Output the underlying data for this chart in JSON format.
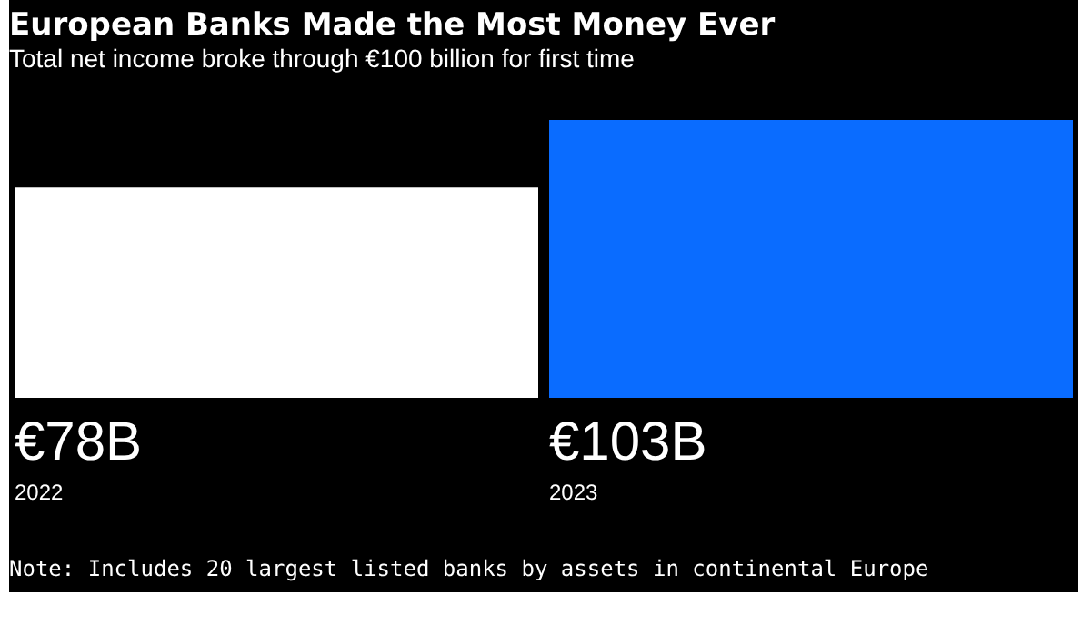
{
  "chart_data": {
    "type": "bar",
    "title": "European Banks Made the Most Money Ever",
    "subtitle": "Total net income broke through €100 billion for first time",
    "categories": [
      "2022",
      "2023"
    ],
    "values": [
      78,
      103
    ],
    "colors": [
      "#ffffff",
      "#0a6cff"
    ],
    "value_labels": [
      "€78B",
      "€103B"
    ],
    "annotations": [
      "Note: Includes 20 largest listed banks by assets in continental Europe"
    ]
  }
}
